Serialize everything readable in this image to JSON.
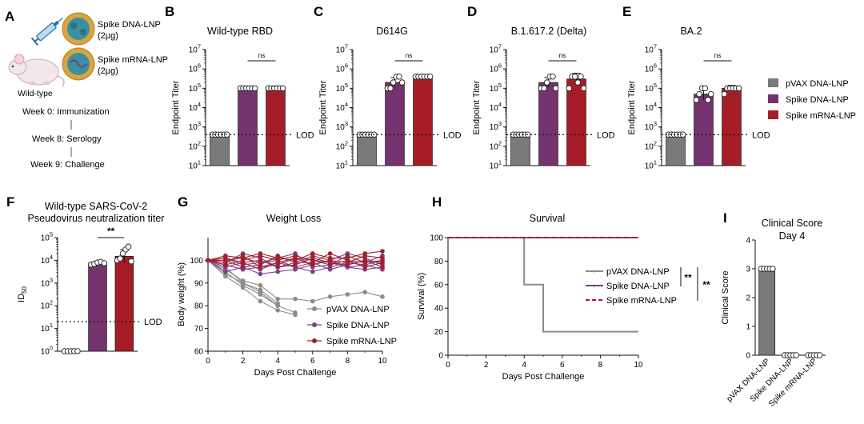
{
  "colors": {
    "pvax": "#7a7a7a",
    "dna": "#74326f",
    "mrna": "#a61c26",
    "dna_line": "#7c3f8a",
    "mrna_line": "#a51f2c",
    "pvax_line": "#8c8c8c"
  },
  "panel_a": {
    "letter": "A",
    "label_dna_1": "Spike DNA-LNP",
    "label_dna_2": "(2μg)",
    "label_mrna_1": "Spike mRNA-LNP",
    "label_mrna_2": "(2μg)",
    "mouse_label": "Wild-type",
    "timeline": [
      "Week 0: Immunization",
      "Week 8: Serology",
      "Week 9: Challenge"
    ]
  },
  "legend_titer": {
    "items": [
      "pVAX DNA-LNP",
      "Spike DNA-LNP",
      "Spike mRNA-LNP"
    ]
  },
  "chart_data": [
    {
      "id": "B",
      "letter": "B",
      "type": "bar",
      "title": "Wild-type RBD",
      "ylabel": "Endpoint Titer",
      "yscale": "log10",
      "ylim": [
        10,
        10000000
      ],
      "yticks": [
        "10^1",
        "10^2",
        "10^3",
        "10^4",
        "10^5",
        "10^6",
        "10^7"
      ],
      "categories": [
        "pVAX DNA-LNP",
        "Spike DNA-LNP",
        "Spike mRNA-LNP"
      ],
      "values": [
        400,
        100000,
        100000
      ],
      "errors": [
        0,
        0,
        0
      ],
      "points": [
        [
          400,
          400,
          400,
          400,
          400,
          400
        ],
        [
          100000,
          100000,
          100000,
          100000,
          100000,
          100000
        ],
        [
          100000,
          100000,
          100000,
          100000,
          100000,
          100000
        ]
      ],
      "lod": 400,
      "lod_label": "LOD",
      "annotation": "ns",
      "annotation_between": [
        1,
        2
      ]
    },
    {
      "id": "C",
      "letter": "C",
      "type": "bar",
      "title": "D614G",
      "ylabel": "Endpoint Titer",
      "yscale": "log10",
      "ylim": [
        10,
        10000000
      ],
      "yticks": [
        "10^1",
        "10^2",
        "10^3",
        "10^4",
        "10^5",
        "10^6",
        "10^7"
      ],
      "categories": [
        "pVAX DNA-LNP",
        "Spike DNA-LNP",
        "Spike mRNA-LNP"
      ],
      "values": [
        400,
        200000,
        400000
      ],
      "errors": [
        0,
        0.25,
        0.05
      ],
      "points": [
        [
          400,
          400,
          400,
          400,
          400,
          400
        ],
        [
          100000,
          100000,
          200000,
          400000,
          400000,
          200000
        ],
        [
          400000,
          400000,
          400000,
          400000,
          400000,
          400000
        ]
      ],
      "lod": 400,
      "lod_label": "LOD",
      "annotation": "ns",
      "annotation_between": [
        1,
        2
      ]
    },
    {
      "id": "D",
      "letter": "D",
      "type": "bar",
      "title": "B.1.617.2 (Delta)",
      "ylabel": "Endpoint Titer",
      "yscale": "log10",
      "ylim": [
        10,
        10000000
      ],
      "yticks": [
        "10^1",
        "10^2",
        "10^3",
        "10^4",
        "10^5",
        "10^6",
        "10^7"
      ],
      "categories": [
        "pVAX DNA-LNP",
        "Spike DNA-LNP",
        "Spike mRNA-LNP"
      ],
      "values": [
        400,
        200000,
        300000
      ],
      "errors": [
        0,
        0.25,
        0.3
      ],
      "points": [
        [
          400,
          400,
          400,
          400,
          400,
          400
        ],
        [
          100000,
          100000,
          200000,
          400000,
          400000,
          100000
        ],
        [
          100000,
          400000,
          400000,
          200000,
          400000,
          100000
        ]
      ],
      "lod": 400,
      "lod_label": "LOD",
      "annotation": "ns",
      "annotation_between": [
        1,
        2
      ]
    },
    {
      "id": "E",
      "letter": "E",
      "type": "bar",
      "title": "BA.2",
      "ylabel": "Endpoint Titer",
      "yscale": "log10",
      "ylim": [
        10,
        10000000
      ],
      "yticks": [
        "10^1",
        "10^2",
        "10^3",
        "10^4",
        "10^5",
        "10^6",
        "10^7"
      ],
      "categories": [
        "pVAX DNA-LNP",
        "Spike DNA-LNP",
        "Spike mRNA-LNP"
      ],
      "values": [
        400,
        50000,
        100000
      ],
      "errors": [
        0,
        0.3,
        0.15
      ],
      "points": [
        [
          400,
          400,
          400,
          400,
          400,
          400
        ],
        [
          25000,
          50000,
          100000,
          100000,
          25000,
          50000
        ],
        [
          50000,
          100000,
          100000,
          100000,
          100000,
          100000
        ]
      ],
      "lod": 400,
      "lod_label": "LOD",
      "annotation": "ns",
      "annotation_between": [
        1,
        2
      ]
    },
    {
      "id": "F",
      "letter": "F",
      "type": "bar",
      "title": "Wild-type SARS-CoV-2",
      "subtitle": "Pseudovirus neutralization titer",
      "ylabel": "ID50",
      "ylabel_main": "ID",
      "ylabel_sub": "50",
      "yscale": "log10",
      "ylim": [
        1,
        100000
      ],
      "yticks": [
        "10^0",
        "10^1",
        "10^2",
        "10^3",
        "10^4",
        "10^5"
      ],
      "categories": [
        "pVAX DNA-LNP",
        "Spike DNA-LNP",
        "Spike mRNA-LNP"
      ],
      "values": [
        1,
        7500,
        15000
      ],
      "errors": [
        0,
        0.05,
        0.3
      ],
      "points": [
        [
          1,
          1,
          1,
          1,
          1
        ],
        [
          6500,
          7000,
          8000,
          8500,
          7500
        ],
        [
          10000,
          12000,
          20000,
          30000,
          40000,
          9000
        ]
      ],
      "lod": 20,
      "lod_label": "LOD",
      "annotation": "**",
      "annotation_between": [
        1,
        2
      ]
    },
    {
      "id": "G",
      "letter": "G",
      "type": "line",
      "title": "Weight Loss",
      "xlabel": "Days Post Challenge",
      "ylabel": "Body weight (%)",
      "xlim": [
        0,
        10
      ],
      "ylim": [
        60,
        110
      ],
      "xticks": [
        "0",
        "2",
        "4",
        "6",
        "8",
        "10"
      ],
      "yticks": [
        "60",
        "70",
        "80",
        "90",
        "100"
      ],
      "legend": [
        "pVAX DNA-LNP",
        "Spike DNA-LNP",
        "Spike mRNA-LNP"
      ],
      "series": [
        {
          "group": "pvax",
          "name": "pVAX DNA-LNP",
          "x": [
            0,
            1,
            2,
            3,
            4,
            5
          ],
          "y": [
            100,
            93,
            88,
            82,
            78,
            76
          ]
        },
        {
          "group": "pvax",
          "name": "pVAX DNA-LNP",
          "x": [
            0,
            1,
            2,
            3,
            4,
            5
          ],
          "y": [
            100,
            95,
            89,
            85,
            80,
            77
          ]
        },
        {
          "group": "pvax",
          "name": "pVAX DNA-LNP",
          "x": [
            0,
            1,
            2,
            3,
            4,
            5,
            6,
            7,
            8,
            9,
            10
          ],
          "y": [
            100,
            96,
            91,
            89,
            83,
            83,
            82,
            84,
            85,
            86,
            84
          ]
        },
        {
          "group": "pvax",
          "name": "pVAX DNA-LNP",
          "x": [
            0,
            1,
            2,
            3,
            4
          ],
          "y": [
            100,
            94,
            90,
            87,
            81
          ]
        },
        {
          "group": "pvax",
          "name": "pVAX DNA-LNP",
          "x": [
            0,
            1,
            2,
            3,
            4
          ],
          "y": [
            100,
            97,
            90,
            86,
            80
          ]
        },
        {
          "group": "dna",
          "name": "Spike DNA-LNP",
          "x": [
            0,
            1,
            2,
            3,
            4,
            5,
            6,
            7,
            8,
            9,
            10
          ],
          "y": [
            100,
            95,
            97,
            94,
            95,
            96,
            98,
            100,
            97,
            96,
            97
          ]
        },
        {
          "group": "dna",
          "name": "Spike DNA-LNP",
          "x": [
            0,
            1,
            2,
            3,
            4,
            5,
            6,
            7,
            8,
            9,
            10
          ],
          "y": [
            100,
            97,
            99,
            96,
            99,
            97,
            95,
            97,
            99,
            98,
            96
          ]
        },
        {
          "group": "dna",
          "name": "Spike DNA-LNP",
          "x": [
            0,
            1,
            2,
            3,
            4,
            5,
            6,
            7,
            8,
            9,
            10
          ],
          "y": [
            100,
            100,
            101,
            99,
            100,
            97,
            99,
            96,
            98,
            100,
            99
          ]
        },
        {
          "group": "dna",
          "name": "Spike DNA-LNP",
          "x": [
            0,
            1,
            2,
            3,
            4,
            5,
            6,
            7,
            8,
            9,
            10
          ],
          "y": [
            100,
            98,
            96,
            97,
            98,
            101,
            100,
            99,
            97,
            98,
            100
          ]
        },
        {
          "group": "dna",
          "name": "Spike DNA-LNP",
          "x": [
            0,
            1,
            2,
            3,
            4,
            5,
            6,
            7,
            8,
            9,
            10
          ],
          "y": [
            100,
            99,
            103,
            101,
            97,
            99,
            102,
            100,
            103,
            101,
            98
          ]
        },
        {
          "group": "dna",
          "name": "Spike DNA-LNP",
          "x": [
            0,
            1,
            2,
            3,
            4,
            5,
            6,
            7,
            8,
            9,
            10
          ],
          "y": [
            100,
            101,
            98,
            99,
            101,
            103,
            97,
            98,
            100,
            99,
            102
          ]
        },
        {
          "group": "mrna",
          "name": "Spike mRNA-LNP",
          "x": [
            0,
            1,
            2,
            3,
            4,
            5,
            6,
            7,
            8,
            9,
            10
          ],
          "y": [
            100,
            99,
            102,
            97,
            99,
            101,
            98,
            100,
            99,
            102,
            101
          ]
        },
        {
          "group": "mrna",
          "name": "Spike mRNA-LNP",
          "x": [
            0,
            1,
            2,
            3,
            4,
            5,
            6,
            7,
            8,
            9,
            10
          ],
          "y": [
            100,
            101,
            99,
            100,
            97,
            98,
            101,
            99,
            98,
            100,
            97
          ]
        },
        {
          "group": "mrna",
          "name": "Spike mRNA-LNP",
          "x": [
            0,
            1,
            2,
            3,
            4,
            5,
            6,
            7,
            8,
            9,
            10
          ],
          "y": [
            100,
            102,
            101,
            103,
            101,
            100,
            103,
            101,
            101,
            103,
            104
          ]
        },
        {
          "group": "mrna",
          "name": "Spike mRNA-LNP",
          "x": [
            0,
            1,
            2,
            3,
            4,
            5,
            6,
            7,
            8,
            9,
            10
          ],
          "y": [
            100,
            100,
            97,
            98,
            102,
            99,
            99,
            103,
            100,
            97,
            99
          ]
        },
        {
          "group": "mrna",
          "name": "Spike mRNA-LNP",
          "x": [
            0,
            1,
            2,
            3,
            4,
            5,
            6,
            7,
            8,
            9,
            10
          ],
          "y": [
            100,
            98,
            100,
            102,
            100,
            102,
            100,
            98,
            102,
            99,
            100
          ]
        }
      ]
    },
    {
      "id": "H",
      "letter": "H",
      "type": "line",
      "title": "Survival",
      "xlabel": "Days Post Challenge",
      "ylabel": "Survival (%)",
      "xlim": [
        0,
        10
      ],
      "ylim": [
        0,
        100
      ],
      "xticks": [
        "0",
        "2",
        "4",
        "6",
        "8",
        "10"
      ],
      "yticks": [
        "0",
        "20",
        "40",
        "60",
        "80",
        "100"
      ],
      "legend": [
        "pVAX DNA-LNP",
        "Spike DNA-LNP",
        "Spike mRNA-LNP"
      ],
      "significance": [
        "**",
        "**"
      ],
      "series": [
        {
          "group": "pvax",
          "name": "pVAX DNA-LNP",
          "step": true,
          "x": [
            0,
            4,
            4,
            5,
            5,
            10
          ],
          "y": [
            100,
            100,
            60,
            60,
            20,
            20
          ]
        },
        {
          "group": "dna",
          "name": "Spike DNA-LNP",
          "step": true,
          "x": [
            0,
            10
          ],
          "y": [
            100,
            100
          ]
        },
        {
          "group": "mrna",
          "name": "Spike mRNA-LNP",
          "step": true,
          "dashed": true,
          "x": [
            0,
            10
          ],
          "y": [
            100,
            100
          ]
        }
      ]
    },
    {
      "id": "I",
      "letter": "I",
      "type": "bar",
      "title": "Clinical Score",
      "subtitle": "Day 4",
      "ylabel": "Clinical Score",
      "yscale": "linear",
      "ylim": [
        0,
        4
      ],
      "yticks": [
        "0",
        "1",
        "2",
        "3",
        "4"
      ],
      "categories": [
        "pVAX DNA-LNP",
        "Spike DNA-LNP",
        "Spike mRNA-LNP"
      ],
      "values": [
        3,
        0,
        0
      ],
      "errors": [
        0,
        0,
        0
      ],
      "points": [
        [
          3,
          3,
          3,
          3,
          3
        ],
        [
          0,
          0,
          0,
          0,
          0
        ],
        [
          0,
          0,
          0,
          0,
          0
        ]
      ]
    }
  ]
}
